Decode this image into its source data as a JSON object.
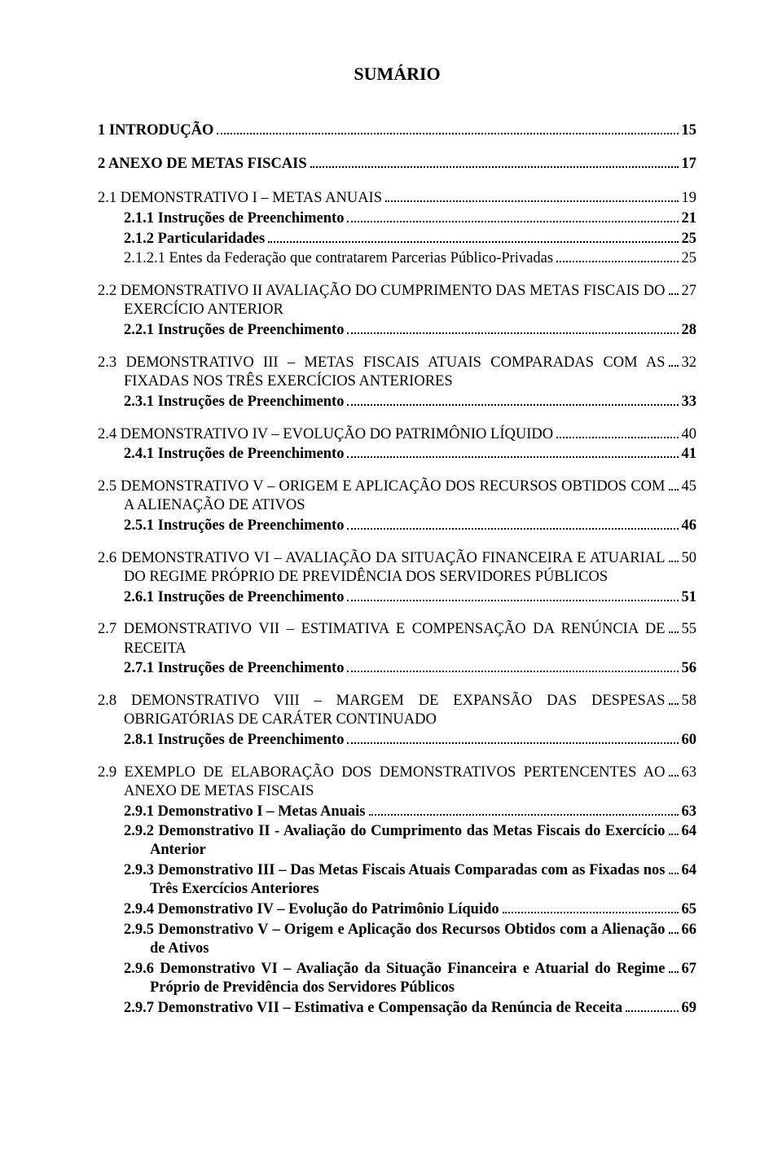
{
  "title": "SUMÁRIO",
  "entries": [
    {
      "text": "1 INTRODUÇÃO",
      "page": "15",
      "level": 0,
      "bold": true,
      "gap": false
    },
    {
      "text": "2 ANEXO DE METAS FISCAIS",
      "page": "17",
      "level": 0,
      "bold": true,
      "gap": false
    },
    {
      "text": "2.1 DEMONSTRATIVO I – METAS ANUAIS",
      "page": "19",
      "level": 1,
      "bold": false,
      "gap": false
    },
    {
      "text": "2.1.1 Instruções de Preenchimento",
      "page": "21",
      "level": 2,
      "bold": true,
      "gap": false
    },
    {
      "text": "2.1.2 Particularidades",
      "page": "25",
      "level": 2,
      "bold": true,
      "gap": false
    },
    {
      "text": "2.1.2.1 Entes da Federação que contratarem Parcerias Público-Privadas",
      "page": "25",
      "level": 3,
      "bold": false,
      "gap": false
    },
    {
      "text": "2.2 DEMONSTRATIVO II AVALIAÇÃO DO CUMPRIMENTO DAS METAS FISCAIS DO EXERCÍCIO ANTERIOR",
      "page": "27",
      "level": 1,
      "bold": false,
      "gap": true,
      "hanging": true
    },
    {
      "text": "2.2.1 Instruções de Preenchimento",
      "page": "28",
      "level": 2,
      "bold": true,
      "gap": false
    },
    {
      "text": "2.3 DEMONSTRATIVO III – METAS FISCAIS ATUAIS COMPARADAS COM AS FIXADAS NOS TRÊS EXERCÍCIOS ANTERIORES",
      "page": "32",
      "level": 1,
      "bold": false,
      "gap": true,
      "hanging": true
    },
    {
      "text": "2.3.1 Instruções de Preenchimento",
      "page": "33",
      "level": 2,
      "bold": true,
      "gap": false
    },
    {
      "text": "2.4 DEMONSTRATIVO IV – EVOLUÇÃO DO PATRIMÔNIO LÍQUIDO",
      "page": "40",
      "level": 1,
      "bold": false,
      "gap": true
    },
    {
      "text": "2.4.1 Instruções de Preenchimento",
      "page": "41",
      "level": 2,
      "bold": true,
      "gap": false
    },
    {
      "text": "2.5 DEMONSTRATIVO V – ORIGEM E APLICAÇÃO DOS RECURSOS OBTIDOS COM A ALIENAÇÃO DE ATIVOS",
      "page": "45",
      "level": 1,
      "bold": false,
      "gap": true,
      "hanging": true
    },
    {
      "text": "2.5.1 Instruções de Preenchimento",
      "page": "46",
      "level": 2,
      "bold": true,
      "gap": false
    },
    {
      "text": "2.6 DEMONSTRATIVO VI – AVALIAÇÃO DA SITUAÇÃO FINANCEIRA E ATUARIAL DO REGIME PRÓPRIO DE PREVIDÊNCIA DOS SERVIDORES PÚBLICOS",
      "page": "50",
      "level": 1,
      "bold": false,
      "gap": true,
      "hanging": true
    },
    {
      "text": "2.6.1 Instruções de Preenchimento",
      "page": "51",
      "level": 2,
      "bold": true,
      "gap": false
    },
    {
      "text": "2.7 DEMONSTRATIVO VII – ESTIMATIVA E COMPENSAÇÃO DA RENÚNCIA DE RECEITA",
      "page": "55",
      "level": 1,
      "bold": false,
      "gap": true,
      "hanging": true
    },
    {
      "text": "2.7.1 Instruções de Preenchimento",
      "page": "56",
      "level": 2,
      "bold": true,
      "gap": false
    },
    {
      "text": "2.8 DEMONSTRATIVO VIII – MARGEM DE EXPANSÃO DAS DESPESAS OBRIGATÓRIAS DE CARÁTER CONTINUADO",
      "page": "58",
      "level": 1,
      "bold": false,
      "gap": true,
      "hanging": true
    },
    {
      "text": "2.8.1 Instruções de Preenchimento",
      "page": "60",
      "level": 2,
      "bold": true,
      "gap": false
    },
    {
      "text": "2.9 EXEMPLO DE ELABORAÇÃO DOS DEMONSTRATIVOS PERTENCENTES AO ANEXO DE METAS FISCAIS",
      "page": "63",
      "level": 1,
      "bold": false,
      "gap": true,
      "hanging": true
    },
    {
      "text": "2.9.1 Demonstrativo I – Metas Anuais",
      "page": "63",
      "level": 2,
      "bold": true,
      "gap": false
    },
    {
      "text": "2.9.2 Demonstrativo II - Avaliação do Cumprimento das Metas Fiscais do Exercício Anterior",
      "page": "64",
      "level": 2,
      "bold": true,
      "gap": false,
      "sub": true
    },
    {
      "text": "2.9.3 Demonstrativo III – Das Metas Fiscais Atuais Comparadas com as Fixadas nos Três Exercícios Anteriores",
      "page": "64",
      "level": 2,
      "bold": true,
      "gap": false,
      "sub": true
    },
    {
      "text": "2.9.4 Demonstrativo IV – Evolução do Patrimônio Líquido",
      "page": "65",
      "level": 2,
      "bold": true,
      "gap": false
    },
    {
      "text": "2.9.5 Demonstrativo V – Origem e Aplicação dos Recursos Obtidos com a Alienação de Ativos",
      "page": "66",
      "level": 2,
      "bold": true,
      "gap": false,
      "sub": true
    },
    {
      "text": "2.9.6 Demonstrativo VI – Avaliação da Situação Financeira e Atuarial do Regime Próprio de Previdência dos Servidores Públicos",
      "page": "67",
      "level": 2,
      "bold": true,
      "gap": false,
      "sub": true
    },
    {
      "text": "2.9.7 Demonstrativo VII – Estimativa e Compensação da Renúncia de Receita",
      "page": "69",
      "level": 2,
      "bold": true,
      "gap": false
    }
  ]
}
